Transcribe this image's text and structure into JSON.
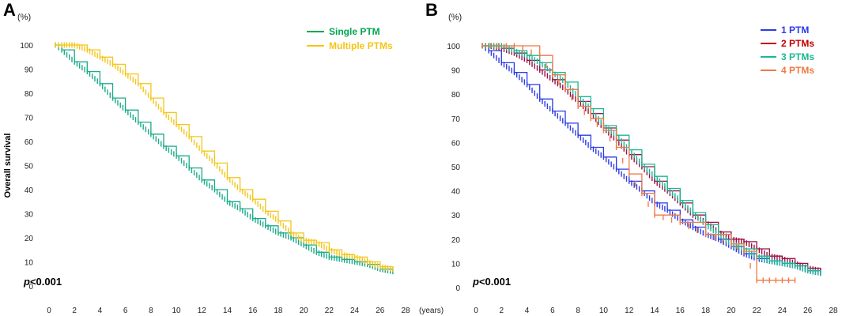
{
  "chart_data": [
    {
      "panel": "A",
      "type": "line",
      "y_unit": "(%)",
      "ylabel": "Overall survival",
      "x_unit": "(years)",
      "xlim": [
        0,
        28
      ],
      "ylim": [
        0,
        100
      ],
      "x_ticks": [
        "0",
        "2",
        "4",
        "6",
        "8",
        "10",
        "12",
        "14",
        "16",
        "18",
        "20",
        "22",
        "24",
        "26",
        "28"
      ],
      "y_ticks": [
        "0",
        "10",
        "20",
        "30",
        "40",
        "50",
        "60",
        "70",
        "80",
        "90",
        "100"
      ],
      "legend_position": "top-right",
      "p_value": "<0.001",
      "series": [
        {
          "name": "Single PTM",
          "color": "#1aab8a",
          "legend_color": "#00a651",
          "x": [
            0.5,
            1,
            2,
            3,
            4,
            5,
            6,
            7,
            8,
            9,
            10,
            11,
            12,
            13,
            14,
            15,
            16,
            17,
            18,
            19,
            20,
            21,
            22,
            23,
            24,
            25,
            26,
            27
          ],
          "y": [
            100,
            98,
            93,
            89,
            84,
            78,
            73,
            68,
            63,
            58,
            54,
            49,
            44,
            40,
            35,
            32,
            28,
            25,
            22,
            20,
            17,
            14,
            12,
            11,
            10,
            9,
            7,
            6
          ]
        },
        {
          "name": "Multiple PTMs",
          "color": "#f5c518",
          "legend_color": "#f5c518",
          "x": [
            0.5,
            1,
            2,
            3,
            4,
            5,
            6,
            7,
            8,
            9,
            10,
            11,
            12,
            13,
            14,
            15,
            16,
            17,
            18,
            19,
            20,
            21,
            22,
            23,
            24,
            25,
            26,
            27
          ],
          "y": [
            100,
            100,
            100,
            98,
            95,
            92,
            88,
            84,
            78,
            72,
            67,
            62,
            56,
            51,
            45,
            40,
            36,
            31,
            27,
            22,
            19,
            18,
            15,
            13,
            12,
            10,
            8,
            7
          ]
        }
      ]
    },
    {
      "panel": "B",
      "type": "line",
      "y_unit": "(%)",
      "ylabel": "",
      "x_unit": "",
      "xlim": [
        0,
        28
      ],
      "ylim": [
        0,
        100
      ],
      "x_ticks": [
        "0",
        "2",
        "4",
        "6",
        "8",
        "10",
        "12",
        "14",
        "16",
        "18",
        "20",
        "22",
        "24",
        "26",
        "28"
      ],
      "y_ticks": [
        "0",
        "10",
        "20",
        "30",
        "40",
        "50",
        "60",
        "70",
        "80",
        "90",
        "100"
      ],
      "legend_position": "top-right",
      "p_value": "<0.001",
      "series": [
        {
          "name": "1 PTM",
          "color": "#2b3be6",
          "legend_color": "#2b3be6",
          "x": [
            0.5,
            1,
            2,
            3,
            4,
            5,
            6,
            7,
            8,
            9,
            10,
            11,
            12,
            13,
            14,
            15,
            16,
            17,
            18,
            19,
            20,
            21,
            22,
            23,
            24,
            25,
            26,
            27
          ],
          "y": [
            100,
            98,
            93,
            89,
            84,
            78,
            73,
            68,
            63,
            58,
            54,
            49,
            44,
            40,
            35,
            32,
            28,
            25,
            22,
            20,
            17,
            14,
            12,
            11,
            10,
            9,
            7,
            6
          ]
        },
        {
          "name": "2 PTMs",
          "color": "#9c1048",
          "legend_color": "#c00000",
          "x": [
            0.5,
            1,
            2,
            3,
            4,
            5,
            6,
            7,
            8,
            9,
            10,
            11,
            12,
            13,
            14,
            15,
            16,
            17,
            18,
            19,
            20,
            21,
            22,
            23,
            24,
            25,
            26,
            27
          ],
          "y": [
            100,
            100,
            99,
            97,
            94,
            90,
            86,
            82,
            77,
            72,
            66,
            61,
            55,
            50,
            44,
            40,
            35,
            30,
            27,
            23,
            20,
            19,
            16,
            13,
            12,
            10,
            8,
            7
          ]
        },
        {
          "name": "3 PTMs",
          "color": "#1ab894",
          "legend_color": "#1ab894",
          "x": [
            0.5,
            1,
            2,
            3,
            4,
            5,
            6,
            7,
            8,
            9,
            10,
            11,
            12,
            13,
            14,
            15,
            16,
            17,
            18,
            19,
            20,
            21,
            22,
            23,
            24,
            25,
            26,
            27
          ],
          "y": [
            100,
            100,
            100,
            98,
            96,
            93,
            89,
            85,
            79,
            74,
            67,
            63,
            57,
            51,
            46,
            41,
            36,
            31,
            26,
            22,
            18,
            16,
            13,
            11,
            10,
            9,
            7,
            6
          ]
        },
        {
          "name": "4 PTMs",
          "color": "#f07a45",
          "legend_color": "#f07a45",
          "x": [
            0.5,
            3,
            5,
            6,
            7,
            8,
            9,
            10,
            11,
            12,
            13,
            14,
            16,
            18,
            20,
            21,
            22,
            23,
            24,
            25
          ],
          "y": [
            100,
            100,
            96,
            88,
            82,
            75,
            70,
            65,
            58,
            47,
            39,
            30,
            27,
            22,
            18,
            15,
            3,
            3,
            3,
            3
          ]
        }
      ]
    }
  ]
}
